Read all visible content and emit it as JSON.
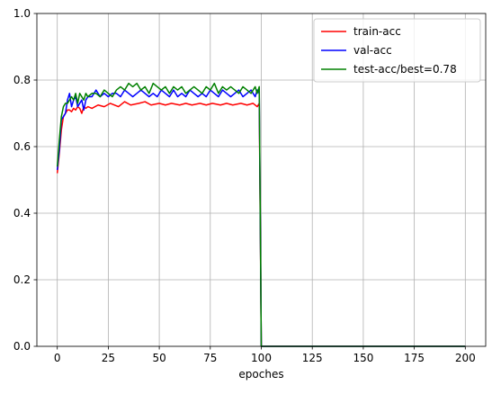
{
  "chart_data": {
    "type": "line",
    "title": "",
    "xlabel": "epoches",
    "ylabel": "",
    "xlim": [
      -10,
      210
    ],
    "ylim": [
      0,
      1.0
    ],
    "xticks": [
      0,
      25,
      50,
      75,
      100,
      125,
      150,
      175,
      200
    ],
    "yticks": [
      0.0,
      0.2,
      0.4,
      0.6,
      0.8,
      1.0
    ],
    "xtick_labels": [
      "0",
      "25",
      "50",
      "75",
      "100",
      "125",
      "150",
      "175",
      "200"
    ],
    "ytick_labels": [
      "0.0",
      "0.2",
      "0.4",
      "0.6",
      "0.8",
      "1.0"
    ],
    "grid": true,
    "legend_position": "top-right",
    "series": [
      {
        "name": "train-acc",
        "color": "#ff0000",
        "points": [
          [
            0,
            0.52
          ],
          [
            1,
            0.58
          ],
          [
            2,
            0.65
          ],
          [
            3,
            0.69
          ],
          [
            4,
            0.7
          ],
          [
            5,
            0.71
          ],
          [
            6,
            0.71
          ],
          [
            7,
            0.705
          ],
          [
            8,
            0.715
          ],
          [
            9,
            0.71
          ],
          [
            10,
            0.72
          ],
          [
            11,
            0.715
          ],
          [
            12,
            0.7
          ],
          [
            13,
            0.72
          ],
          [
            14,
            0.715
          ],
          [
            15,
            0.72
          ],
          [
            17,
            0.715
          ],
          [
            20,
            0.725
          ],
          [
            23,
            0.72
          ],
          [
            26,
            0.73
          ],
          [
            30,
            0.72
          ],
          [
            33,
            0.735
          ],
          [
            36,
            0.725
          ],
          [
            40,
            0.73
          ],
          [
            43,
            0.735
          ],
          [
            46,
            0.725
          ],
          [
            50,
            0.73
          ],
          [
            53,
            0.725
          ],
          [
            56,
            0.73
          ],
          [
            60,
            0.725
          ],
          [
            63,
            0.73
          ],
          [
            66,
            0.725
          ],
          [
            70,
            0.73
          ],
          [
            73,
            0.725
          ],
          [
            76,
            0.73
          ],
          [
            80,
            0.725
          ],
          [
            83,
            0.73
          ],
          [
            86,
            0.725
          ],
          [
            90,
            0.73
          ],
          [
            93,
            0.725
          ],
          [
            96,
            0.73
          ],
          [
            98,
            0.72
          ],
          [
            99,
            0.73
          ],
          [
            100,
            0.0
          ],
          [
            200,
            0.0
          ]
        ]
      },
      {
        "name": "val-acc",
        "color": "#0000ff",
        "points": [
          [
            0,
            0.53
          ],
          [
            1,
            0.59
          ],
          [
            2,
            0.68
          ],
          [
            3,
            0.69
          ],
          [
            4,
            0.7
          ],
          [
            5,
            0.74
          ],
          [
            6,
            0.76
          ],
          [
            7,
            0.72
          ],
          [
            8,
            0.74
          ],
          [
            9,
            0.75
          ],
          [
            10,
            0.72
          ],
          [
            11,
            0.73
          ],
          [
            12,
            0.74
          ],
          [
            13,
            0.71
          ],
          [
            14,
            0.74
          ],
          [
            15,
            0.75
          ],
          [
            17,
            0.75
          ],
          [
            19,
            0.77
          ],
          [
            21,
            0.75
          ],
          [
            23,
            0.76
          ],
          [
            25,
            0.75
          ],
          [
            27,
            0.76
          ],
          [
            29,
            0.76
          ],
          [
            31,
            0.75
          ],
          [
            33,
            0.77
          ],
          [
            35,
            0.76
          ],
          [
            37,
            0.75
          ],
          [
            39,
            0.76
          ],
          [
            41,
            0.77
          ],
          [
            43,
            0.76
          ],
          [
            45,
            0.75
          ],
          [
            47,
            0.76
          ],
          [
            49,
            0.75
          ],
          [
            51,
            0.77
          ],
          [
            53,
            0.76
          ],
          [
            55,
            0.75
          ],
          [
            57,
            0.77
          ],
          [
            59,
            0.75
          ],
          [
            61,
            0.76
          ],
          [
            63,
            0.75
          ],
          [
            65,
            0.77
          ],
          [
            67,
            0.76
          ],
          [
            69,
            0.75
          ],
          [
            71,
            0.76
          ],
          [
            73,
            0.75
          ],
          [
            75,
            0.77
          ],
          [
            77,
            0.76
          ],
          [
            79,
            0.75
          ],
          [
            81,
            0.77
          ],
          [
            83,
            0.76
          ],
          [
            85,
            0.75
          ],
          [
            87,
            0.76
          ],
          [
            89,
            0.77
          ],
          [
            91,
            0.75
          ],
          [
            93,
            0.76
          ],
          [
            95,
            0.77
          ],
          [
            97,
            0.75
          ],
          [
            98,
            0.77
          ],
          [
            99,
            0.76
          ],
          [
            100,
            0.0
          ],
          [
            200,
            0.0
          ]
        ]
      },
      {
        "name": "test-acc/best=0.78",
        "color": "#008000",
        "points": [
          [
            0,
            0.54
          ],
          [
            1,
            0.62
          ],
          [
            2,
            0.69
          ],
          [
            3,
            0.72
          ],
          [
            4,
            0.73
          ],
          [
            5,
            0.73
          ],
          [
            6,
            0.74
          ],
          [
            7,
            0.75
          ],
          [
            8,
            0.74
          ],
          [
            9,
            0.76
          ],
          [
            10,
            0.73
          ],
          [
            11,
            0.76
          ],
          [
            12,
            0.75
          ],
          [
            13,
            0.74
          ],
          [
            14,
            0.76
          ],
          [
            15,
            0.75
          ],
          [
            17,
            0.76
          ],
          [
            19,
            0.76
          ],
          [
            21,
            0.75
          ],
          [
            23,
            0.77
          ],
          [
            25,
            0.76
          ],
          [
            27,
            0.75
          ],
          [
            29,
            0.77
          ],
          [
            31,
            0.78
          ],
          [
            33,
            0.77
          ],
          [
            35,
            0.79
          ],
          [
            37,
            0.78
          ],
          [
            39,
            0.79
          ],
          [
            41,
            0.77
          ],
          [
            43,
            0.78
          ],
          [
            45,
            0.76
          ],
          [
            47,
            0.79
          ],
          [
            49,
            0.78
          ],
          [
            51,
            0.77
          ],
          [
            53,
            0.78
          ],
          [
            55,
            0.76
          ],
          [
            57,
            0.78
          ],
          [
            59,
            0.77
          ],
          [
            61,
            0.78
          ],
          [
            63,
            0.76
          ],
          [
            65,
            0.77
          ],
          [
            67,
            0.78
          ],
          [
            69,
            0.77
          ],
          [
            71,
            0.76
          ],
          [
            73,
            0.78
          ],
          [
            75,
            0.77
          ],
          [
            77,
            0.79
          ],
          [
            79,
            0.76
          ],
          [
            81,
            0.78
          ],
          [
            83,
            0.77
          ],
          [
            85,
            0.78
          ],
          [
            87,
            0.77
          ],
          [
            89,
            0.76
          ],
          [
            91,
            0.78
          ],
          [
            93,
            0.77
          ],
          [
            95,
            0.76
          ],
          [
            97,
            0.78
          ],
          [
            98,
            0.76
          ],
          [
            99,
            0.78
          ],
          [
            100,
            0.0
          ],
          [
            200,
            0.0
          ]
        ]
      }
    ]
  }
}
